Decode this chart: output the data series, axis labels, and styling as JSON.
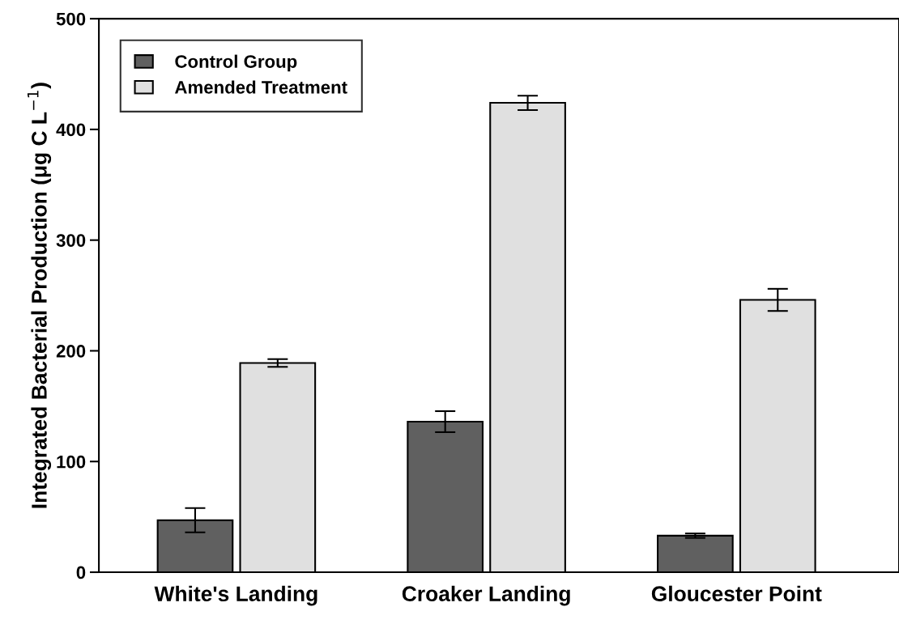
{
  "chart_data": {
    "type": "bar",
    "ylabel": "Integrated Bacterial Production (μg C L$^{−1}$)",
    "categories": [
      "White's Landing",
      "Croaker Landing",
      "Gloucester Point"
    ],
    "series": [
      {
        "name": "Control Group",
        "color": "#606060",
        "values": [
          47,
          136,
          33
        ],
        "errors": [
          11,
          9.5,
          2
        ]
      },
      {
        "name": "Amended Treatment",
        "color": "#e0e0e0",
        "values": [
          189,
          424,
          246
        ],
        "errors": [
          3.5,
          6.5,
          10
        ]
      }
    ],
    "ylim": [
      0,
      500
    ],
    "yticks": [
      0,
      100,
      200,
      300,
      400,
      500
    ],
    "grid": false,
    "legend": "top left"
  }
}
